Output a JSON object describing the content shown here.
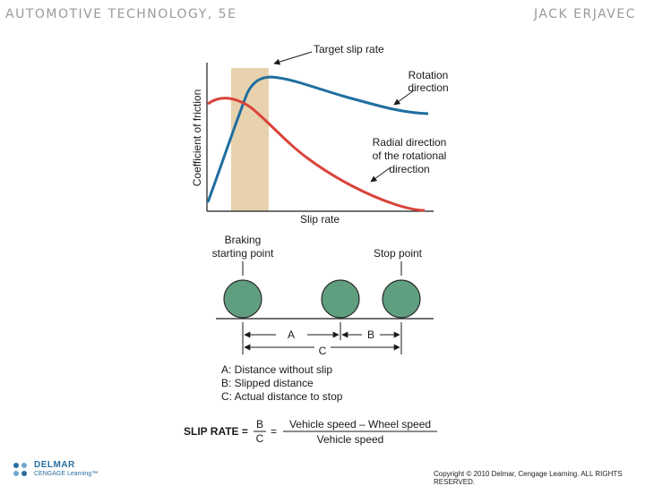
{
  "header": {
    "left_title": "AUTOMOTIVE TECHNOLOGY, 5E",
    "right_title": "JACK ERJAVEC"
  },
  "graph": {
    "ylabel": "Coefficient of friction",
    "xlabel": "Slip rate",
    "target_label": "Target slip rate",
    "rotation_label": [
      "Rotation",
      "direction"
    ],
    "radial_label": [
      "Radial direction",
      "of the rotational",
      "direction"
    ],
    "colors": {
      "rotation_curve": "#1f6ea0",
      "radial_curve": "#d9433a",
      "target_band": "#e8d2ad"
    }
  },
  "distance": {
    "start_label": [
      "Braking",
      "starting point"
    ],
    "stop_label": "Stop point",
    "label_a": "A",
    "label_b": "B",
    "label_c": "C",
    "wheel_color": "#5f9f7f"
  },
  "legend": [
    "A: Distance without slip",
    "B: Slipped distance",
    "C: Actual distance to stop"
  ],
  "formula": {
    "label": "SLIP RATE =",
    "numerator_letter": "B",
    "denominator_letter": "C",
    "equals": "=",
    "numerator_text": "Vehicle speed – Wheel speed",
    "denominator_text": "Vehicle speed"
  },
  "footer": {
    "logo_name": "DELMAR",
    "logo_sub": "CENGAGE Learning™",
    "copyright": "Copyright © 2010 Delmar, Cengage Learning. ALL RIGHTS RESERVED."
  }
}
